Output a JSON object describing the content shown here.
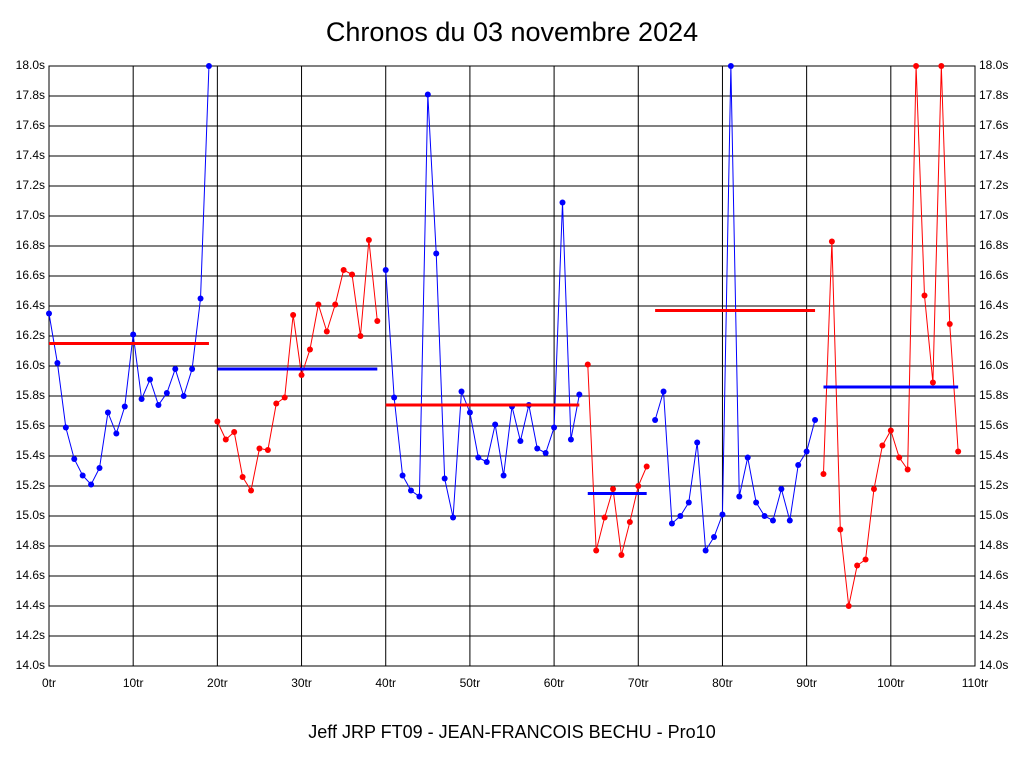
{
  "chart_data": {
    "type": "line",
    "title": "Chronos du 03 novembre 2024",
    "footer": "Jeff JRP FT09 - JEAN-FRANCOIS BECHU - Pro10",
    "xlim": [
      0,
      110
    ],
    "xticks": [
      {
        "value": 0,
        "label": "0tr"
      },
      {
        "value": 10,
        "label": "10tr"
      },
      {
        "value": 20,
        "label": "20tr"
      },
      {
        "value": 30,
        "label": "30tr"
      },
      {
        "value": 40,
        "label": "40tr"
      },
      {
        "value": 50,
        "label": "50tr"
      },
      {
        "value": 60,
        "label": "60tr"
      },
      {
        "value": 70,
        "label": "70tr"
      },
      {
        "value": 80,
        "label": "80tr"
      },
      {
        "value": 90,
        "label": "90tr"
      },
      {
        "value": 100,
        "label": "100tr"
      },
      {
        "value": 110,
        "label": "110tr"
      }
    ],
    "ylim": [
      14,
      18
    ],
    "yticks": [
      {
        "value": 14.0,
        "label": "14.0s"
      },
      {
        "value": 14.2,
        "label": "14.2s"
      },
      {
        "value": 14.4,
        "label": "14.4s"
      },
      {
        "value": 14.6,
        "label": "14.6s"
      },
      {
        "value": 14.8,
        "label": "14.8s"
      },
      {
        "value": 15.0,
        "label": "15.0s"
      },
      {
        "value": 15.2,
        "label": "15.2s"
      },
      {
        "value": 15.4,
        "label": "15.4s"
      },
      {
        "value": 15.6,
        "label": "15.6s"
      },
      {
        "value": 15.8,
        "label": "15.8s"
      },
      {
        "value": 16.0,
        "label": "16.0s"
      },
      {
        "value": 16.2,
        "label": "16.2s"
      },
      {
        "value": 16.4,
        "label": "16.4s"
      },
      {
        "value": 16.6,
        "label": "16.6s"
      },
      {
        "value": 16.8,
        "label": "16.8s"
      },
      {
        "value": 17.0,
        "label": "17.0s"
      },
      {
        "value": 17.2,
        "label": "17.2s"
      },
      {
        "value": 17.4,
        "label": "17.4s"
      },
      {
        "value": 17.6,
        "label": "17.6s"
      },
      {
        "value": 17.8,
        "label": "17.8s"
      },
      {
        "value": 18.0,
        "label": "18.0s"
      }
    ],
    "right_axis": true,
    "grid": true,
    "series": [
      {
        "color": "#0000ff",
        "mean": 16.15,
        "mean_color": "#ff0000",
        "x": [
          0,
          1,
          2,
          3,
          4,
          5,
          6,
          7,
          8,
          9,
          10,
          11,
          12,
          13,
          14,
          15,
          16,
          17,
          18,
          19
        ],
        "values": [
          16.35,
          16.02,
          15.59,
          15.38,
          15.27,
          15.21,
          15.32,
          15.69,
          15.55,
          15.73,
          16.21,
          15.78,
          15.91,
          15.74,
          15.82,
          15.98,
          15.8,
          15.98,
          16.45,
          18.0
        ]
      },
      {
        "color": "#ff0000",
        "mean": 15.98,
        "mean_color": "#0000ff",
        "x": [
          20,
          21,
          22,
          23,
          24,
          25,
          26,
          27,
          28,
          29,
          30,
          31,
          32,
          33,
          34,
          35,
          36,
          37,
          38,
          39
        ],
        "values": [
          15.63,
          15.51,
          15.56,
          15.26,
          15.17,
          15.45,
          15.44,
          15.75,
          15.79,
          16.34,
          15.94,
          16.11,
          16.41,
          16.23,
          16.41,
          16.64,
          16.61,
          16.2,
          16.84,
          16.3
        ]
      },
      {
        "color": "#0000ff",
        "mean": 15.74,
        "mean_color": "#ff0000",
        "x": [
          40,
          41,
          42,
          43,
          44,
          45,
          46,
          47,
          48,
          49,
          50,
          51,
          52,
          53,
          54,
          55,
          56,
          57,
          58,
          59,
          60,
          61,
          62,
          63
        ],
        "values": [
          16.64,
          15.79,
          15.27,
          15.17,
          15.13,
          17.81,
          16.75,
          15.25,
          14.99,
          15.83,
          15.69,
          15.39,
          15.36,
          15.61,
          15.27,
          15.73,
          15.5,
          15.74,
          15.45,
          15.42,
          15.59,
          17.09,
          15.51,
          15.81
        ]
      },
      {
        "color": "#ff0000",
        "mean": 15.15,
        "mean_color": "#0000ff",
        "x": [
          64,
          65,
          66,
          67,
          68,
          69,
          70,
          71
        ],
        "values": [
          16.01,
          14.77,
          14.99,
          15.18,
          14.74,
          14.96,
          15.2,
          15.33
        ]
      },
      {
        "color": "#0000ff",
        "mean": 16.37,
        "mean_color": "#ff0000",
        "x": [
          72,
          73,
          74,
          75,
          76,
          77,
          78,
          79,
          80,
          81,
          82,
          83,
          84,
          85,
          86,
          87,
          88,
          89,
          90,
          91
        ],
        "values": [
          15.64,
          15.83,
          14.95,
          15.0,
          15.09,
          15.49,
          14.77,
          14.86,
          15.01,
          18.0,
          15.13,
          15.39,
          15.09,
          15.0,
          14.97,
          15.18,
          14.97,
          15.34,
          15.43,
          15.64
        ]
      },
      {
        "color": "#ff0000",
        "mean": 15.86,
        "mean_color": "#0000ff",
        "x": [
          92,
          93,
          94,
          95,
          96,
          97,
          98,
          99,
          100,
          101,
          102,
          103,
          104,
          105,
          106,
          107,
          108
        ],
        "values": [
          15.28,
          16.83,
          14.91,
          14.4,
          14.67,
          14.71,
          15.18,
          15.47,
          15.57,
          15.39,
          15.31,
          18.0,
          16.47,
          15.89,
          18.0,
          16.28,
          15.43
        ]
      }
    ]
  }
}
